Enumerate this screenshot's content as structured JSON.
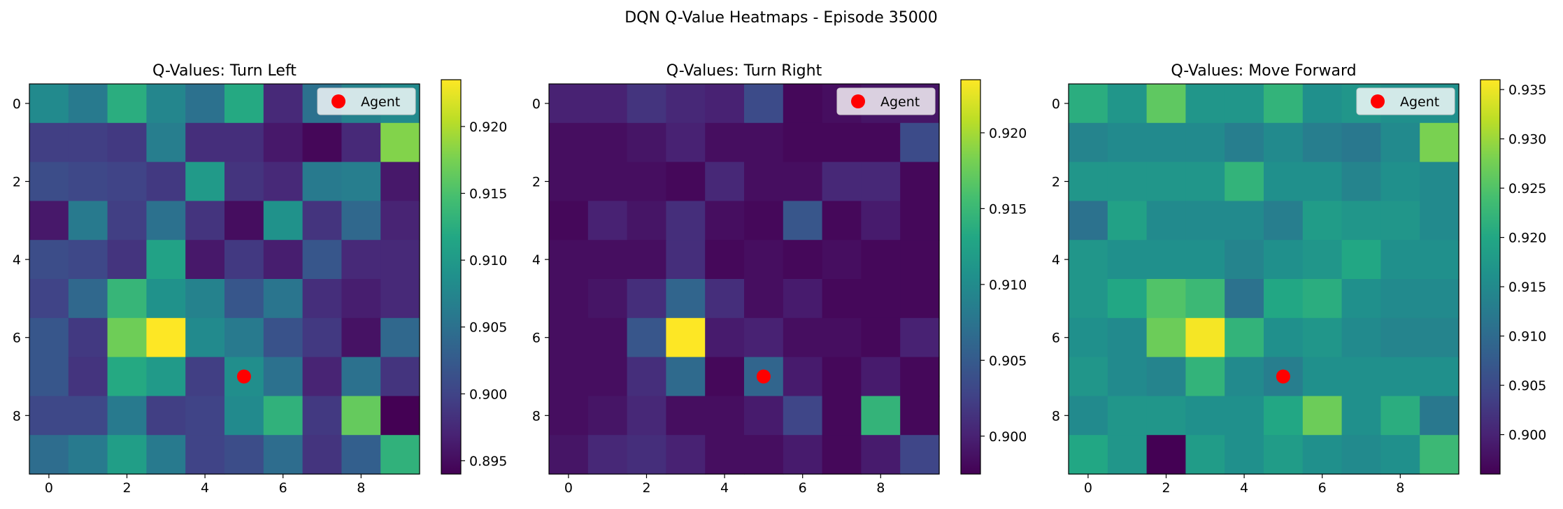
{
  "figure": {
    "title": "DQN Q-Value Heatmaps - Episode 35000"
  },
  "chart_data": [
    {
      "type": "heatmap",
      "title": "Q-Values: Turn Left",
      "xlabel": "",
      "ylabel": "",
      "x_ticks": [
        "0",
        "2",
        "4",
        "6",
        "8"
      ],
      "y_ticks": [
        "0",
        "2",
        "4",
        "6",
        "8"
      ],
      "colormap": "viridis",
      "vmin": 0.894,
      "vmax": 0.9235,
      "colorbar_ticks": [
        "0.895",
        "0.900",
        "0.905",
        "0.910",
        "0.915",
        "0.920"
      ],
      "legend": {
        "label": "Agent",
        "position": "upper right"
      },
      "agent": {
        "x": 5,
        "y": 7,
        "color": "#ff0000"
      },
      "values": [
        [
          0.908,
          0.906,
          0.9125,
          0.9075,
          0.905,
          0.912,
          0.8975,
          0.905,
          0.907,
          0.908
        ],
        [
          0.8995,
          0.8995,
          0.899,
          0.9065,
          0.898,
          0.898,
          0.896,
          0.8945,
          0.8975,
          0.918
        ],
        [
          0.901,
          0.9005,
          0.9,
          0.899,
          0.91,
          0.8985,
          0.8975,
          0.906,
          0.9065,
          0.896
        ],
        [
          0.896,
          0.906,
          0.8995,
          0.905,
          0.8985,
          0.895,
          0.909,
          0.8985,
          0.904,
          0.897
        ],
        [
          0.901,
          0.9005,
          0.8985,
          0.911,
          0.896,
          0.899,
          0.8965,
          0.902,
          0.8975,
          0.8975
        ],
        [
          0.9,
          0.904,
          0.9135,
          0.909,
          0.907,
          0.902,
          0.9055,
          0.898,
          0.8965,
          0.8975
        ],
        [
          0.902,
          0.899,
          0.917,
          0.9235,
          0.908,
          0.906,
          0.9015,
          0.899,
          0.8955,
          0.904
        ],
        [
          0.902,
          0.8985,
          0.912,
          0.91,
          0.8995,
          0.9085,
          0.905,
          0.897,
          0.905,
          0.8985
        ],
        [
          0.9005,
          0.9005,
          0.906,
          0.8995,
          0.9,
          0.908,
          0.913,
          0.899,
          0.9165,
          0.894
        ],
        [
          0.9045,
          0.906,
          0.9105,
          0.906,
          0.9,
          0.901,
          0.9045,
          0.8985,
          0.903,
          0.913
        ]
      ]
    },
    {
      "type": "heatmap",
      "title": "Q-Values: Turn Right",
      "xlabel": "",
      "ylabel": "",
      "x_ticks": [
        "0",
        "2",
        "4",
        "6",
        "8"
      ],
      "y_ticks": [
        "0",
        "2",
        "4",
        "6",
        "8"
      ],
      "colormap": "viridis",
      "vmin": 0.8975,
      "vmax": 0.9235,
      "colorbar_ticks": [
        "0.900",
        "0.905",
        "0.910",
        "0.915",
        "0.920"
      ],
      "legend": {
        "label": "Agent",
        "position": "upper right"
      },
      "agent": {
        "x": 5,
        "y": 7,
        "color": "#ff0000"
      },
      "values": [
        [
          0.9,
          0.9,
          0.9015,
          0.9005,
          0.9,
          0.9035,
          0.898,
          0.8985,
          0.899,
          0.899
        ],
        [
          0.8985,
          0.8985,
          0.899,
          0.9,
          0.8985,
          0.8985,
          0.898,
          0.898,
          0.898,
          0.9035
        ],
        [
          0.8985,
          0.8985,
          0.8985,
          0.898,
          0.9005,
          0.8985,
          0.8985,
          0.9005,
          0.9005,
          0.898
        ],
        [
          0.898,
          0.9,
          0.899,
          0.901,
          0.8985,
          0.898,
          0.9045,
          0.898,
          0.8995,
          0.898
        ],
        [
          0.8985,
          0.8985,
          0.8985,
          0.901,
          0.898,
          0.8985,
          0.898,
          0.8985,
          0.898,
          0.898
        ],
        [
          0.8985,
          0.899,
          0.901,
          0.906,
          0.901,
          0.8985,
          0.8995,
          0.898,
          0.898,
          0.898
        ],
        [
          0.8985,
          0.8985,
          0.9045,
          0.9235,
          0.8995,
          0.9,
          0.8985,
          0.8985,
          0.898,
          0.9
        ],
        [
          0.8985,
          0.8985,
          0.901,
          0.9065,
          0.898,
          0.906,
          0.8995,
          0.898,
          0.8995,
          0.898
        ],
        [
          0.8985,
          0.899,
          0.9005,
          0.8985,
          0.8985,
          0.8995,
          0.903,
          0.898,
          0.9145,
          0.898
        ],
        [
          0.899,
          0.9005,
          0.901,
          0.9,
          0.8985,
          0.8985,
          0.8995,
          0.898,
          0.8995,
          0.903
        ]
      ]
    },
    {
      "type": "heatmap",
      "title": "Q-Values: Move Forward",
      "xlabel": "",
      "ylabel": "",
      "x_ticks": [
        "0",
        "2",
        "4",
        "6",
        "8"
      ],
      "y_ticks": [
        "0",
        "2",
        "4",
        "6",
        "8"
      ],
      "colormap": "viridis",
      "vmin": 0.896,
      "vmax": 0.936,
      "colorbar_ticks": [
        "0.900",
        "0.905",
        "0.910",
        "0.915",
        "0.920",
        "0.925",
        "0.930",
        "0.935"
      ],
      "legend": {
        "label": "Agent",
        "position": "upper right"
      },
      "agent": {
        "x": 5,
        "y": 7,
        "color": "#ff0000"
      },
      "values": [
        [
          0.921,
          0.917,
          0.926,
          0.917,
          0.917,
          0.922,
          0.916,
          0.917,
          0.916,
          0.916
        ],
        [
          0.914,
          0.915,
          0.915,
          0.915,
          0.913,
          0.915,
          0.913,
          0.912,
          0.915,
          0.928
        ],
        [
          0.917,
          0.917,
          0.917,
          0.917,
          0.922,
          0.916,
          0.916,
          0.914,
          0.916,
          0.915
        ],
        [
          0.911,
          0.919,
          0.915,
          0.915,
          0.915,
          0.913,
          0.918,
          0.917,
          0.917,
          0.915
        ],
        [
          0.917,
          0.916,
          0.916,
          0.916,
          0.914,
          0.916,
          0.917,
          0.92,
          0.916,
          0.916
        ],
        [
          0.917,
          0.92,
          0.925,
          0.923,
          0.911,
          0.92,
          0.921,
          0.916,
          0.915,
          0.915
        ],
        [
          0.916,
          0.915,
          0.927,
          0.9355,
          0.922,
          0.916,
          0.917,
          0.915,
          0.914,
          0.914
        ],
        [
          0.917,
          0.915,
          0.914,
          0.922,
          0.915,
          0.913,
          0.916,
          0.916,
          0.916,
          0.916
        ],
        [
          0.915,
          0.917,
          0.917,
          0.916,
          0.916,
          0.92,
          0.927,
          0.916,
          0.921,
          0.912
        ],
        [
          0.92,
          0.917,
          0.896,
          0.918,
          0.916,
          0.918,
          0.916,
          0.915,
          0.916,
          0.923
        ]
      ]
    }
  ]
}
